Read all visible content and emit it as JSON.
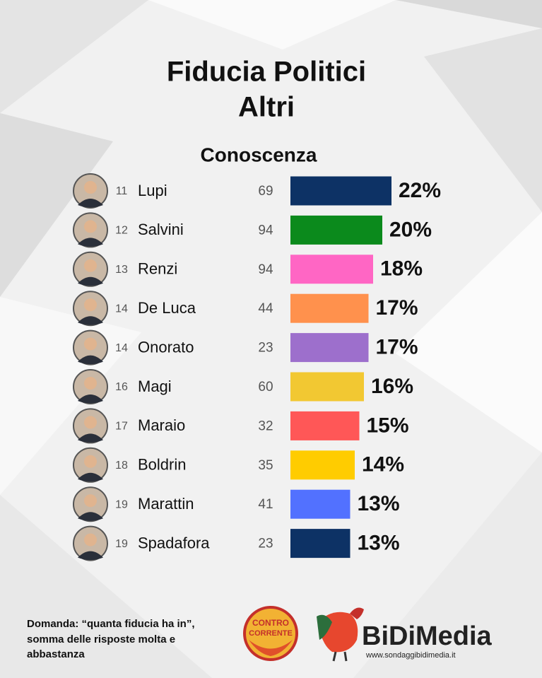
{
  "chart_data": {
    "type": "bar",
    "title": [
      "Fiducia Politici",
      "Altri"
    ],
    "column_header": "Conoscenza",
    "ranks": [
      11,
      12,
      13,
      14,
      14,
      16,
      17,
      18,
      19,
      19
    ],
    "categories": [
      "Lupi",
      "Salvini",
      "Renzi",
      "De Luca",
      "Onorato",
      "Magi",
      "Maraio",
      "Boldrin",
      "Marattin",
      "Spadafora"
    ],
    "conoscenza": [
      69,
      94,
      94,
      44,
      23,
      60,
      32,
      35,
      41,
      23
    ],
    "values": [
      22,
      20,
      18,
      17,
      17,
      16,
      15,
      14,
      13,
      13
    ],
    "value_labels": [
      "22%",
      "20%",
      "18%",
      "17%",
      "17%",
      "16%",
      "15%",
      "14%",
      "13%",
      "13%"
    ],
    "colors": [
      "#0d3265",
      "#0b8a1c",
      "#ff66c4",
      "#ff914d",
      "#9d6fcc",
      "#f2c832",
      "#ff5757",
      "#ffcc00",
      "#5271ff",
      "#0d3265"
    ]
  },
  "footer": {
    "question": [
      "Domanda: “quanta fiducia ha in”,",
      "somma delle risposte molta e",
      "abbastanza"
    ],
    "logo_left": [
      "CONTRO",
      "CORRENTE"
    ],
    "logo_right": "BiDiMedia",
    "website": "www.sondaggibidimedia.it"
  }
}
